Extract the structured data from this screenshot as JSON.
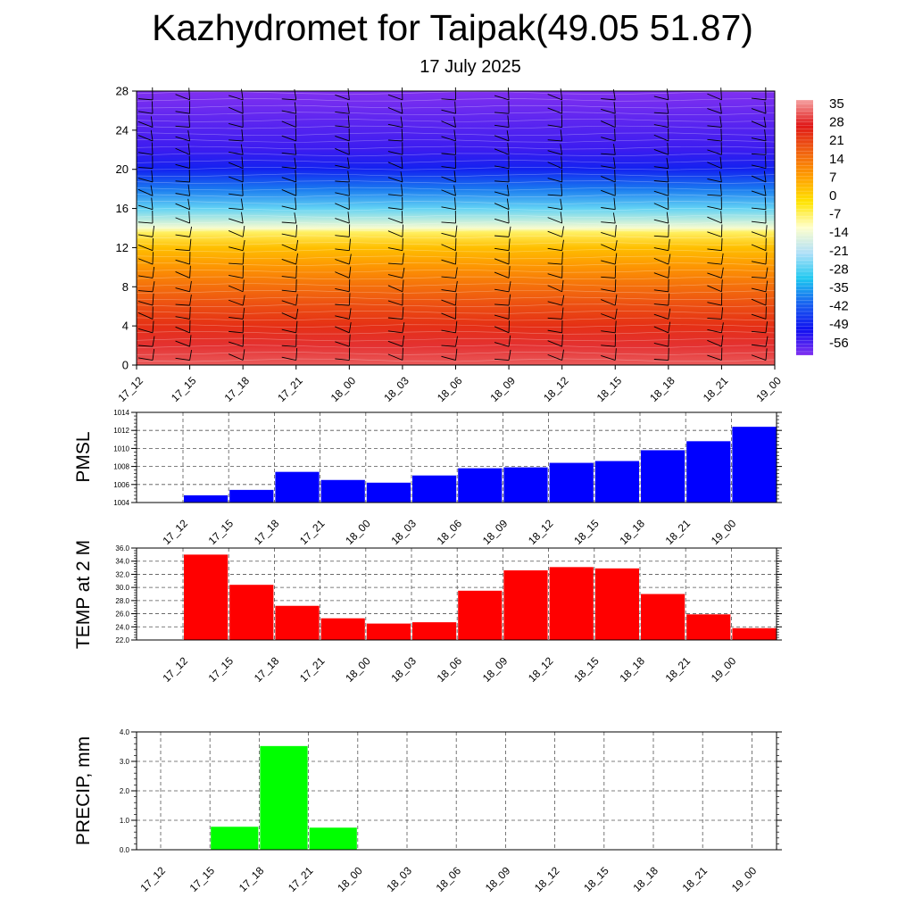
{
  "header": {
    "title": "Kazhydromet for Taipak(49.05 51.87)",
    "subtitle": "17 July 2025"
  },
  "chart_data": [
    {
      "type": "heatmap",
      "title": "",
      "xlabel": "",
      "ylabel": "",
      "x_tick_labels": [
        "17_12",
        "17_15",
        "17_18",
        "17_21",
        "18_00",
        "18_03",
        "18_06",
        "18_09",
        "18_12",
        "18_15",
        "18_18",
        "18_21",
        "19_00"
      ],
      "y_tick_labels": [
        "0",
        "4",
        "8",
        "12",
        "16",
        "20",
        "24",
        "28"
      ],
      "ylim": [
        0,
        28
      ],
      "colorbar_labels": [
        "35",
        "28",
        "21",
        "14",
        "7",
        "0",
        "-7",
        "-14",
        "-21",
        "-28",
        "-35",
        "-42",
        "-49",
        "-56"
      ],
      "colorbar_range": [
        -60,
        38
      ],
      "color_stops": [
        "#f5a0a0",
        "#e01818",
        "#f06010",
        "#ff9e00",
        "#ffe400",
        "#ffffcc",
        "#b0e0f8",
        "#1ec8f0",
        "#1860f0",
        "#1010f0",
        "#8030f0"
      ],
      "profile": [
        {
          "level": 0,
          "value": 33
        },
        {
          "level": 2,
          "value": 30
        },
        {
          "level": 4,
          "value": 25
        },
        {
          "level": 6,
          "value": 21
        },
        {
          "level": 8,
          "value": 16
        },
        {
          "level": 10,
          "value": 10
        },
        {
          "level": 12,
          "value": 4
        },
        {
          "level": 13.6,
          "value": -6
        },
        {
          "level": 14,
          "value": -12
        },
        {
          "level": 16,
          "value": -26
        },
        {
          "level": 18,
          "value": -38
        },
        {
          "level": 20,
          "value": -48
        },
        {
          "level": 22,
          "value": -54
        },
        {
          "level": 28,
          "value": -60
        }
      ]
    },
    {
      "type": "line",
      "ylabel": "PMSL",
      "categories": [
        "17_12",
        "17_15",
        "17_18",
        "17_21",
        "18_00",
        "18_03",
        "18_06",
        "18_09",
        "18_12",
        "18_15",
        "18_18",
        "18_21",
        "19_00"
      ],
      "y_tick_labels": [
        "1004",
        "1006",
        "1008",
        "1010",
        "1012",
        "1014"
      ],
      "ylim": [
        1004,
        1014
      ],
      "color": "#0000ff",
      "values": [
        1004.8,
        1005.4,
        1007.4,
        1006.5,
        1006.2,
        1007.0,
        1007.8,
        1007.9,
        1008.4,
        1008.6,
        1009.8,
        1010.8,
        1012.4
      ]
    },
    {
      "type": "line",
      "ylabel": "TEMP at 2 M",
      "categories": [
        "17_12",
        "17_15",
        "17_18",
        "17_21",
        "18_00",
        "18_03",
        "18_06",
        "18_09",
        "18_12",
        "18_15",
        "18_18",
        "18_21",
        "19_00"
      ],
      "y_tick_labels": [
        "22.0",
        "24.0",
        "26.0",
        "28.0",
        "30.0",
        "32.0",
        "34.0",
        "36.0"
      ],
      "ylim": [
        22,
        36
      ],
      "color": "#ff0000",
      "values": [
        35.0,
        30.4,
        27.2,
        25.3,
        24.5,
        24.7,
        29.5,
        32.6,
        33.1,
        32.9,
        29.0,
        25.9,
        23.8
      ]
    },
    {
      "type": "bar",
      "ylabel": "PRECIP, mm",
      "categories": [
        "17_12",
        "17_15",
        "17_18",
        "17_21",
        "18_00",
        "18_03",
        "18_06",
        "18_09",
        "18_12",
        "18_15",
        "18_18",
        "18_21",
        "19_00"
      ],
      "y_tick_labels": [
        "0.0",
        "1.0",
        "2.0",
        "3.0",
        "4.0"
      ],
      "ylim": [
        0,
        4
      ],
      "color": "#00ff00",
      "values": [
        0,
        0.78,
        3.52,
        0.75,
        0,
        0,
        0,
        0,
        0,
        0,
        0,
        0,
        0
      ]
    }
  ]
}
